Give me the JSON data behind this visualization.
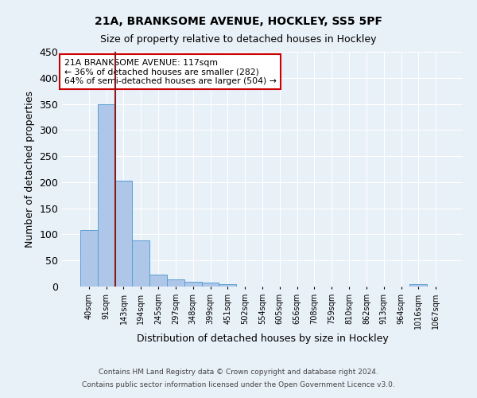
{
  "title1": "21A, BRANKSOME AVENUE, HOCKLEY, SS5 5PF",
  "title2": "Size of property relative to detached houses in Hockley",
  "xlabel": "Distribution of detached houses by size in Hockley",
  "ylabel": "Number of detached properties",
  "footnote1": "Contains HM Land Registry data © Crown copyright and database right 2024.",
  "footnote2": "Contains public sector information licensed under the Open Government Licence v3.0.",
  "bar_labels": [
    "40sqm",
    "91sqm",
    "143sqm",
    "194sqm",
    "245sqm",
    "297sqm",
    "348sqm",
    "399sqm",
    "451sqm",
    "502sqm",
    "554sqm",
    "605sqm",
    "656sqm",
    "708sqm",
    "759sqm",
    "810sqm",
    "862sqm",
    "913sqm",
    "964sqm",
    "1016sqm",
    "1067sqm"
  ],
  "bar_values": [
    108,
    349,
    203,
    88,
    23,
    14,
    9,
    7,
    5,
    0,
    0,
    0,
    0,
    0,
    0,
    0,
    0,
    0,
    0,
    4,
    0
  ],
  "bar_color": "#aec6e8",
  "bar_edge_color": "#5a9fd4",
  "bg_color": "#e8f0f8",
  "grid_color": "#ffffff",
  "vline_color": "#8b1a1a",
  "annotation_text": "21A BRANKSOME AVENUE: 117sqm\n← 36% of detached houses are smaller (282)\n64% of semi-detached houses are larger (504) →",
  "annotation_box_color": "#ffffff",
  "annotation_box_edge": "#cc0000",
  "ylim": [
    0,
    450
  ],
  "yticks": [
    0,
    50,
    100,
    150,
    200,
    250,
    300,
    350,
    400,
    450
  ]
}
